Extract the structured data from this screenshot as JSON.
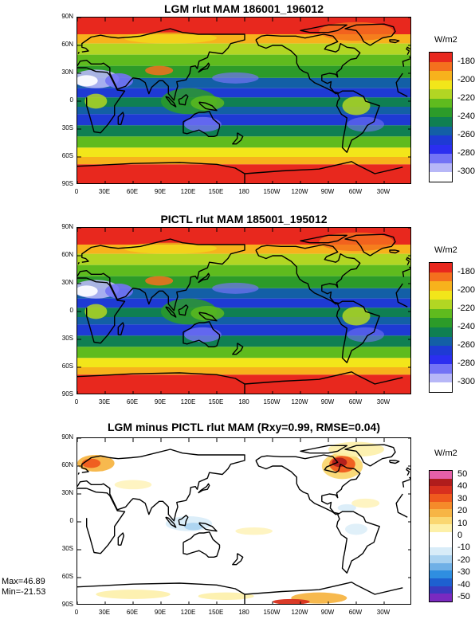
{
  "panels": [
    {
      "title": "LGM rlut MAM 186001_196012",
      "units": "W/m2",
      "kind": "absolute",
      "levels": [
        "-180",
        "-200",
        "-220",
        "-240",
        "-260",
        "-280",
        "-300"
      ],
      "colors": [
        "#e8281e",
        "#f4701e",
        "#f7b21c",
        "#f2e61a",
        "#b2d623",
        "#5fbb1e",
        "#2c9b29",
        "#0f7f52",
        "#135fa6",
        "#1e3ad4",
        "#2b2ef0",
        "#7373f5",
        "#b7b7f7",
        "#ffffff"
      ]
    },
    {
      "title": "PICTL rlut MAM 185001_195012",
      "units": "W/m2",
      "kind": "absolute",
      "levels": [
        "-180",
        "-200",
        "-220",
        "-240",
        "-260",
        "-280",
        "-300"
      ],
      "colors": [
        "#e8281e",
        "#f4701e",
        "#f7b21c",
        "#f2e61a",
        "#b2d623",
        "#5fbb1e",
        "#2c9b29",
        "#0f7f52",
        "#135fa6",
        "#1e3ad4",
        "#2b2ef0",
        "#7373f5",
        "#b7b7f7",
        "#ffffff"
      ]
    },
    {
      "title": "LGM minus PICTL rlut MAM (Rxy=0.99, RMSE=0.04)",
      "units": "W/m2",
      "kind": "difference",
      "levels": [
        "50",
        "40",
        "30",
        "20",
        "10",
        "0",
        "-10",
        "-20",
        "-30",
        "-40",
        "-50"
      ],
      "colors": [
        "#e660a8",
        "#b01c1c",
        "#d8301e",
        "#ef5a1e",
        "#f58b2a",
        "#f7b545",
        "#fad771",
        "#fdf0a8",
        "#ffffff",
        "#ffffff",
        "#d8ecf8",
        "#a9d2f0",
        "#6fb0e6",
        "#2f8ee0",
        "#1e60d0",
        "#3a3ac0",
        "#7a2ac0"
      ],
      "stats": {
        "max": "Max=46.89",
        "min": "Min=-21.53"
      }
    }
  ],
  "axes": {
    "lat_labels": [
      "90N",
      "60N",
      "30N",
      "0",
      "30S",
      "60S",
      "90S"
    ],
    "lon_labels": [
      "0",
      "30E",
      "60E",
      "90E",
      "120E",
      "150E",
      "180",
      "150W",
      "120W",
      "90W",
      "60W",
      "30W"
    ]
  }
}
